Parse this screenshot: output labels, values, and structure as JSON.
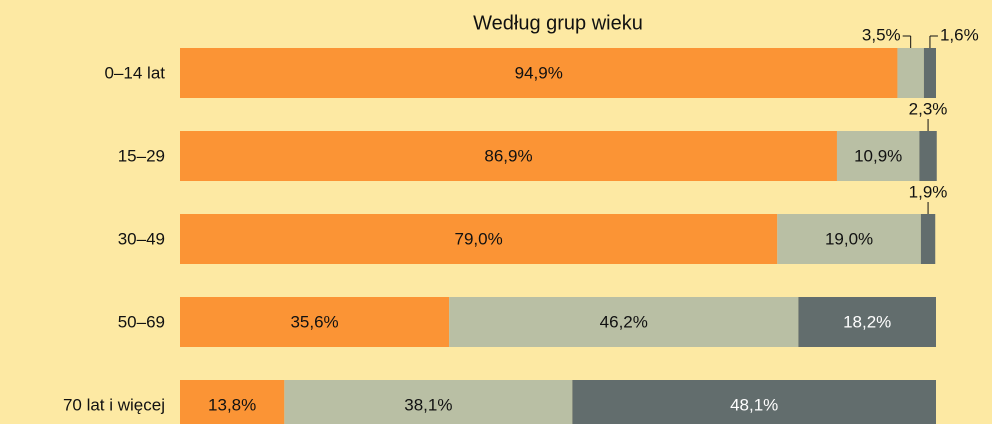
{
  "chart_data": {
    "type": "stacked-bar-horizontal",
    "title": "Według grup wieku",
    "categories": [
      "0–14 lat",
      "15–29",
      "30–49",
      "50–69",
      "70 lat i więcej"
    ],
    "xlim": [
      0,
      100
    ],
    "series": [
      {
        "color": "#fb9435",
        "label_color": "#111111",
        "values": [
          94.9,
          86.9,
          79.0,
          35.6,
          13.8
        ],
        "value_labels": [
          "94,9%",
          "86,9%",
          "79,0%",
          "35,6%",
          "13,8%"
        ]
      },
      {
        "color": "#b9bfa4",
        "label_color": "#111111",
        "values": [
          3.5,
          10.9,
          19.0,
          46.2,
          38.1
        ],
        "value_labels": [
          "3,5%",
          "10,9%",
          "19,0%",
          "46,2%",
          "38,1%"
        ]
      },
      {
        "color": "#626d6d",
        "label_color": "#ffffff",
        "values": [
          1.6,
          2.3,
          1.9,
          18.2,
          48.1
        ],
        "value_labels": [
          "1,6%",
          "2,3%",
          "1,9%",
          "18,2%",
          "48,1%"
        ]
      }
    ]
  }
}
